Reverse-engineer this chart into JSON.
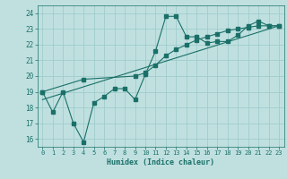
{
  "title": "",
  "xlabel": "Humidex (Indice chaleur)",
  "ylabel": "",
  "bg_color": "#c0e0e0",
  "grid_color": "#a0cccc",
  "line_color": "#1a7068",
  "xlim": [
    -0.5,
    23.5
  ],
  "ylim": [
    15.5,
    24.5
  ],
  "xticks": [
    0,
    1,
    2,
    3,
    4,
    5,
    6,
    7,
    8,
    9,
    10,
    11,
    12,
    13,
    14,
    15,
    16,
    17,
    18,
    19,
    20,
    21,
    22,
    23
  ],
  "yticks": [
    16,
    17,
    18,
    19,
    20,
    21,
    22,
    23,
    24
  ],
  "line1_x": [
    0,
    1,
    2,
    3,
    4,
    5,
    6,
    7,
    8,
    9,
    10,
    11,
    12,
    13,
    14,
    15,
    16,
    17,
    18,
    19,
    20,
    21,
    22,
    23
  ],
  "line1_y": [
    19.0,
    17.7,
    19.0,
    17.0,
    15.8,
    18.3,
    18.7,
    19.2,
    19.2,
    18.5,
    20.1,
    21.6,
    23.8,
    23.8,
    22.5,
    22.5,
    22.1,
    22.2,
    22.2,
    22.6,
    23.2,
    23.5,
    23.2,
    23.2
  ],
  "line2_x": [
    0,
    4,
    9,
    10,
    11,
    12,
    13,
    14,
    15,
    16,
    17,
    18,
    19,
    20,
    21,
    22,
    23
  ],
  "line2_y": [
    19.0,
    19.8,
    20.0,
    20.2,
    20.7,
    21.3,
    21.7,
    22.0,
    22.3,
    22.5,
    22.7,
    22.9,
    23.0,
    23.1,
    23.2,
    23.2,
    23.2
  ],
  "line3_x": [
    0,
    23
  ],
  "line3_y": [
    18.5,
    23.2
  ]
}
